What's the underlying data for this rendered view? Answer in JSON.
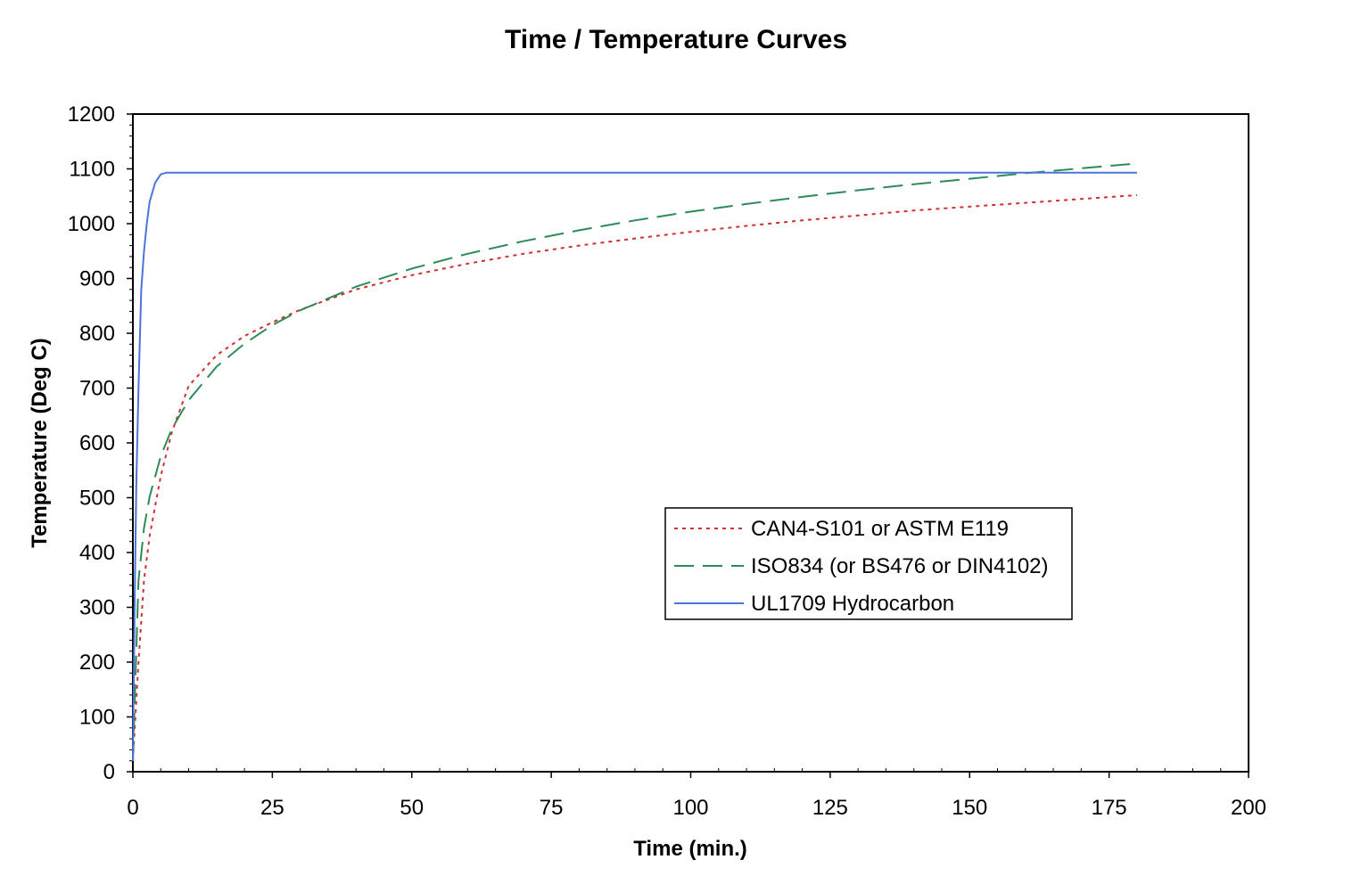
{
  "chart_data": {
    "type": "line",
    "title": "Time / Temperature Curves",
    "xlabel": "Time (min.)",
    "ylabel": "Temperature (Deg C)",
    "xlim": [
      0,
      200
    ],
    "ylim": [
      0,
      1200
    ],
    "xticks": [
      0,
      25,
      50,
      75,
      100,
      125,
      150,
      175,
      200
    ],
    "yticks": [
      0,
      100,
      200,
      300,
      400,
      500,
      600,
      700,
      800,
      900,
      1000,
      1100,
      1200
    ],
    "legend_position": "center-right",
    "series": [
      {
        "name": "CAN4-S101 or ASTM E119",
        "color": "#d03030",
        "style": "dotted",
        "x": [
          0,
          1,
          2,
          3,
          5,
          7,
          10,
          15,
          20,
          25,
          30,
          40,
          50,
          60,
          70,
          80,
          90,
          100,
          110,
          120,
          130,
          140,
          150,
          160,
          170,
          180
        ],
        "y": [
          20,
          200,
          350,
          430,
          540,
          620,
          704,
          760,
          795,
          820,
          843,
          880,
          906,
          927,
          945,
          960,
          973,
          985,
          996,
          1006,
          1015,
          1024,
          1031,
          1038,
          1045,
          1052
        ]
      },
      {
        "name": "ISO834 (or BS476 or DIN4102)",
        "color": "#2e8b57",
        "style": "dashed",
        "x": [
          0,
          1,
          2,
          3,
          5,
          7,
          10,
          15,
          20,
          25,
          30,
          40,
          50,
          60,
          70,
          80,
          90,
          100,
          110,
          120,
          130,
          140,
          150,
          160,
          170,
          180
        ],
        "y": [
          20,
          349,
          445,
          502,
          576,
          626,
          678,
          739,
          781,
          815,
          842,
          885,
          918,
          945,
          968,
          988,
          1006,
          1022,
          1036,
          1049,
          1061,
          1072,
          1082,
          1092,
          1101,
          1110
        ]
      },
      {
        "name": "UL1709 Hydrocarbon",
        "color": "#4a74d8",
        "style": "solid",
        "x": [
          0,
          0.3,
          0.6,
          1,
          1.5,
          2,
          2.5,
          3,
          4,
          5,
          6,
          10,
          50,
          100,
          150,
          180
        ],
        "y": [
          20,
          300,
          520,
          700,
          880,
          950,
          1000,
          1040,
          1075,
          1090,
          1093,
          1093,
          1093,
          1093,
          1093,
          1093
        ]
      }
    ]
  }
}
